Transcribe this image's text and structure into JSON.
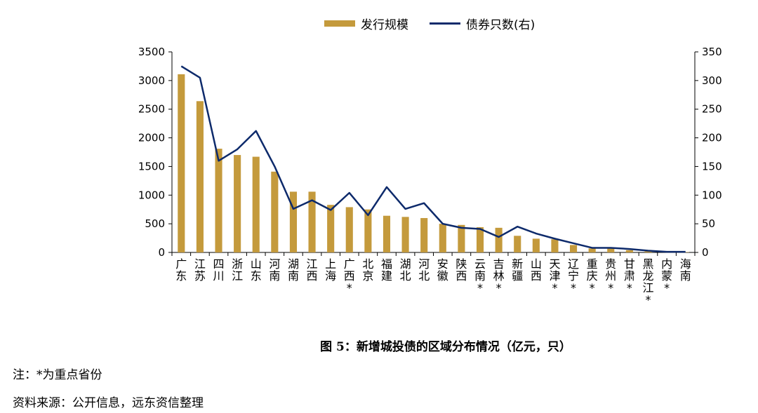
{
  "legend": {
    "bar_label": "发行规模",
    "line_label": "债券只数(右)"
  },
  "caption": "图 5：新增城投债的区域分布情况（亿元，只）",
  "notes": {
    "note": "注：*为重点省份",
    "source": "资料来源：公开信息，远东资信整理"
  },
  "colors": {
    "bar": "#C49A3C",
    "line": "#0D2A6B",
    "axis": "#000000"
  },
  "chart_data": {
    "type": "bar",
    "categories": [
      "广东",
      "江苏",
      "四川",
      "浙江",
      "山东",
      "河南",
      "湖南",
      "江西",
      "上海",
      "广西*",
      "北京",
      "福建",
      "湖北",
      "河北",
      "安徽",
      "陕西",
      "云南*",
      "吉林*",
      "新疆",
      "山西",
      "天津*",
      "辽宁*",
      "重庆*",
      "贵州*",
      "甘肃*",
      "黑龙江*",
      "内蒙*",
      "海南"
    ],
    "series": [
      {
        "name": "发行规模",
        "type": "bar",
        "axis": "left",
        "values": [
          3110,
          2640,
          1810,
          1700,
          1670,
          1410,
          1060,
          1060,
          830,
          790,
          750,
          640,
          620,
          600,
          500,
          480,
          440,
          430,
          290,
          240,
          230,
          130,
          70,
          70,
          40,
          20,
          10,
          5
        ]
      },
      {
        "name": "债券只数(右)",
        "type": "line",
        "axis": "right",
        "values": [
          325,
          305,
          160,
          180,
          212,
          150,
          76,
          91,
          74,
          104,
          65,
          114,
          76,
          86,
          50,
          43,
          41,
          27,
          45,
          33,
          24,
          16,
          8,
          8,
          6,
          3,
          1,
          1
        ]
      }
    ],
    "ylim_left": [
      0,
      3500
    ],
    "yticks_left": [
      0,
      500,
      1000,
      1500,
      2000,
      2500,
      3000,
      3500
    ],
    "ylim_right": [
      0,
      350
    ],
    "yticks_right": [
      0,
      50,
      100,
      150,
      200,
      250,
      300,
      350
    ],
    "grid": false,
    "legend_position": "top"
  }
}
